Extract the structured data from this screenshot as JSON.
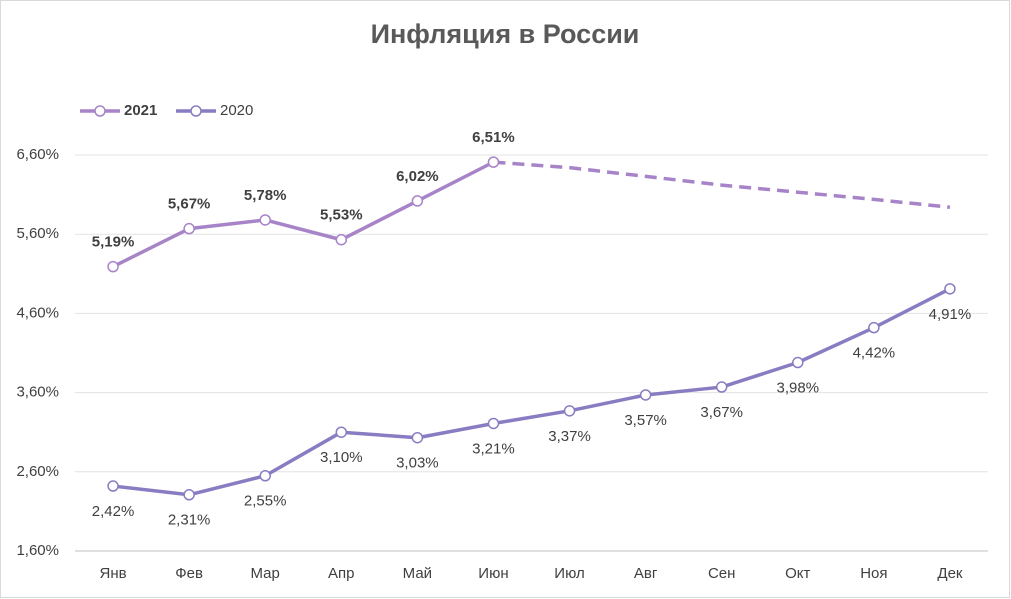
{
  "chart_data": {
    "type": "line",
    "title": "Инфляция в России",
    "categories": [
      "Янв",
      "Фев",
      "Мар",
      "Апр",
      "Май",
      "Июн",
      "Июл",
      "Авг",
      "Сен",
      "Окт",
      "Ноя",
      "Дек"
    ],
    "series": [
      {
        "name": "2021",
        "color": "#a784c8",
        "dash_from": 5,
        "values": [
          5.19,
          5.67,
          5.78,
          5.53,
          6.02,
          6.51,
          6.44,
          6.33,
          6.22,
          6.13,
          6.04,
          5.94
        ],
        "value_labels": [
          "5,19%",
          "5,67%",
          "5,78%",
          "5,53%",
          "6,02%",
          "6,51%",
          null,
          null,
          null,
          null,
          null,
          null
        ]
      },
      {
        "name": "2020",
        "color": "#8a7cc2",
        "values": [
          2.42,
          2.31,
          2.55,
          3.1,
          3.03,
          3.21,
          3.37,
          3.57,
          3.67,
          3.98,
          4.42,
          4.91
        ],
        "value_labels": [
          "2,42%",
          "2,31%",
          "2,55%",
          "3,10%",
          "3,03%",
          "3,21%",
          "3,37%",
          "3,57%",
          "3,67%",
          "3,98%",
          "4,42%",
          "4,91%"
        ]
      }
    ],
    "ylim": [
      1.6,
      6.6
    ],
    "yticks": [
      {
        "value": 1.6,
        "label": "1,60%"
      },
      {
        "value": 2.6,
        "label": "2,60%"
      },
      {
        "value": 3.6,
        "label": "3,60%"
      },
      {
        "value": 4.6,
        "label": "4,60%"
      },
      {
        "value": 5.6,
        "label": "5,60%"
      },
      {
        "value": 6.6,
        "label": "6,60%"
      }
    ],
    "grid": true,
    "legend": "top-left"
  }
}
